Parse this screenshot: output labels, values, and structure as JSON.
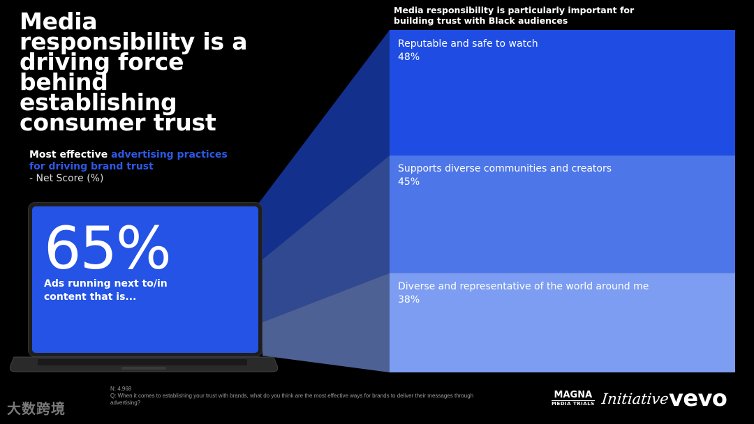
{
  "headline": "Media responsibility is a driving force behind establishing consumer trust",
  "subhead": {
    "part1": "Most effective ",
    "part2": "advertising practices for driving brand trust",
    "metric": "- Net Score (%)"
  },
  "laptop": {
    "stat": "65%",
    "description": "Ads running next to/in content that is..."
  },
  "chart_data": {
    "type": "bar",
    "title": "Media responsibility is particularly important for building trust with Black audiences",
    "categories": [
      "Reputable and safe to watch",
      "Supports diverse communities and creators",
      "Diverse and representative of the world around me"
    ],
    "values": [
      48,
      45,
      38
    ],
    "value_labels": [
      "48%",
      "45%",
      "38%"
    ],
    "colors": [
      "#1f4de3",
      "#4d76e9",
      "#7c9df1"
    ],
    "stacked": true
  },
  "footer": {
    "n": "N: 4,968",
    "question": "Q: When it comes to establishing your trust with brands, what do you think are the most effective ways for brands to deliver their messages through advertising?",
    "watermark": "大数跨境"
  },
  "logos": {
    "magna": "MAGNA",
    "magna_sub": "MEDIA TRIALS",
    "initiative": "Initiative",
    "vevo": "vevo"
  }
}
